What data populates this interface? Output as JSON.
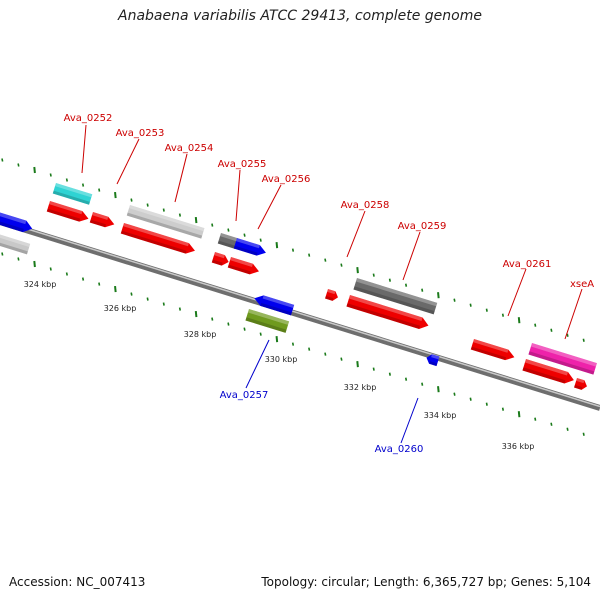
{
  "title": "Anabaena variabilis ATCC 29413, complete genome",
  "footer": {
    "accession": "Accession: NC_007413",
    "summary": "Topology: circular; Length: 6,365,727 bp; Genes: 5,104"
  },
  "colors": {
    "label_forward": "#cc0000",
    "label_reverse": "#0000cc",
    "tick": "#1a7a1a",
    "backbone": "#8a8a8a"
  },
  "scale_labels": [
    "324 kbp",
    "326 kbp",
    "328 kbp",
    "330 kbp",
    "332 kbp",
    "334 kbp",
    "336 kbp"
  ],
  "gene_labels": [
    {
      "text": "Ava_0252",
      "strand": "forward"
    },
    {
      "text": "Ava_0253",
      "strand": "forward"
    },
    {
      "text": "Ava_0254",
      "strand": "forward"
    },
    {
      "text": "Ava_0255",
      "strand": "forward"
    },
    {
      "text": "Ava_0256",
      "strand": "forward"
    },
    {
      "text": "Ava_0258",
      "strand": "forward"
    },
    {
      "text": "Ava_0259",
      "strand": "forward"
    },
    {
      "text": "Ava_0261",
      "strand": "forward"
    },
    {
      "text": "xseA",
      "strand": "forward"
    },
    {
      "text": "Ava_0257",
      "strand": "reverse"
    },
    {
      "text": "Ava_0260",
      "strand": "reverse"
    }
  ]
}
